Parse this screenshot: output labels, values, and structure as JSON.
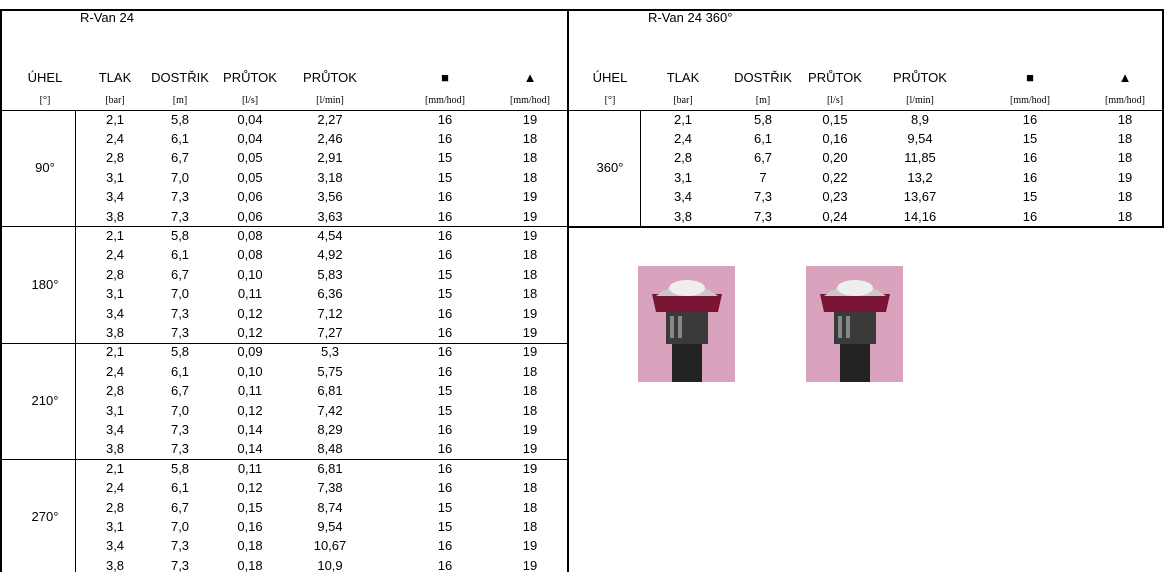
{
  "left": {
    "title": "R-Van 24",
    "headers": [
      "ÚHEL",
      "TLAK",
      "DOSTŘIK",
      "PRŮTOK",
      "PRŮTOK",
      "■",
      "▲"
    ],
    "units": [
      "[°]",
      "[bar]",
      "[m]",
      "[l/s]",
      "[l/min]",
      "[mm/hod]",
      "[mm/hod]"
    ],
    "groups": [
      {
        "angle": "90°",
        "rows": [
          [
            "2,1",
            "5,8",
            "0,04",
            "2,27",
            "16",
            "19"
          ],
          [
            "2,4",
            "6,1",
            "0,04",
            "2,46",
            "16",
            "18"
          ],
          [
            "2,8",
            "6,7",
            "0,05",
            "2,91",
            "15",
            "18"
          ],
          [
            "3,1",
            "7,0",
            "0,05",
            "3,18",
            "15",
            "18"
          ],
          [
            "3,4",
            "7,3",
            "0,06",
            "3,56",
            "16",
            "19"
          ],
          [
            "3,8",
            "7,3",
            "0,06",
            "3,63",
            "16",
            "19"
          ]
        ]
      },
      {
        "angle": "180°",
        "rows": [
          [
            "2,1",
            "5,8",
            "0,08",
            "4,54",
            "16",
            "19"
          ],
          [
            "2,4",
            "6,1",
            "0,08",
            "4,92",
            "16",
            "18"
          ],
          [
            "2,8",
            "6,7",
            "0,10",
            "5,83",
            "15",
            "18"
          ],
          [
            "3,1",
            "7,0",
            "0,11",
            "6,36",
            "15",
            "18"
          ],
          [
            "3,4",
            "7,3",
            "0,12",
            "7,12",
            "16",
            "19"
          ],
          [
            "3,8",
            "7,3",
            "0,12",
            "7,27",
            "16",
            "19"
          ]
        ]
      },
      {
        "angle": "210°",
        "rows": [
          [
            "2,1",
            "5,8",
            "0,09",
            "5,3",
            "16",
            "19"
          ],
          [
            "2,4",
            "6,1",
            "0,10",
            "5,75",
            "16",
            "18"
          ],
          [
            "2,8",
            "6,7",
            "0,11",
            "6,81",
            "15",
            "18"
          ],
          [
            "3,1",
            "7,0",
            "0,12",
            "7,42",
            "15",
            "18"
          ],
          [
            "3,4",
            "7,3",
            "0,14",
            "8,29",
            "16",
            "19"
          ],
          [
            "3,8",
            "7,3",
            "0,14",
            "8,48",
            "16",
            "19"
          ]
        ]
      },
      {
        "angle": "270°",
        "rows": [
          [
            "2,1",
            "5,8",
            "0,11",
            "6,81",
            "16",
            "19"
          ],
          [
            "2,4",
            "6,1",
            "0,12",
            "7,38",
            "16",
            "18"
          ],
          [
            "2,8",
            "6,7",
            "0,15",
            "8,74",
            "15",
            "18"
          ],
          [
            "3,1",
            "7,0",
            "0,16",
            "9,54",
            "15",
            "18"
          ],
          [
            "3,4",
            "7,3",
            "0,18",
            "10,67",
            "16",
            "19"
          ],
          [
            "3,8",
            "7,3",
            "0,18",
            "10,9",
            "16",
            "19"
          ]
        ]
      }
    ]
  },
  "right": {
    "title": "R-Van 24 360°",
    "headers": [
      "ÚHEL",
      "TLAK",
      "DOSTŘIK",
      "PRŮTOK",
      "PRŮTOK",
      "■",
      "▲"
    ],
    "units": [
      "[°]",
      "[bar]",
      "[m]",
      "[l/s]",
      "[l/min]",
      "[mm/hod]",
      "[mm/hod]"
    ],
    "groups": [
      {
        "angle": "360°",
        "rows": [
          [
            "2,1",
            "5,8",
            "0,15",
            "8,9",
            "16",
            "18"
          ],
          [
            "2,4",
            "6,1",
            "0,16",
            "9,54",
            "15",
            "18"
          ],
          [
            "2,8",
            "6,7",
            "0,20",
            "11,85",
            "16",
            "18"
          ],
          [
            "3,1",
            "7",
            "0,22",
            "13,2",
            "16",
            "19"
          ],
          [
            "3,4",
            "7,3",
            "0,23",
            "13,67",
            "15",
            "18"
          ],
          [
            "3,8",
            "7,3",
            "0,24",
            "14,16",
            "16",
            "18"
          ]
        ]
      }
    ]
  }
}
